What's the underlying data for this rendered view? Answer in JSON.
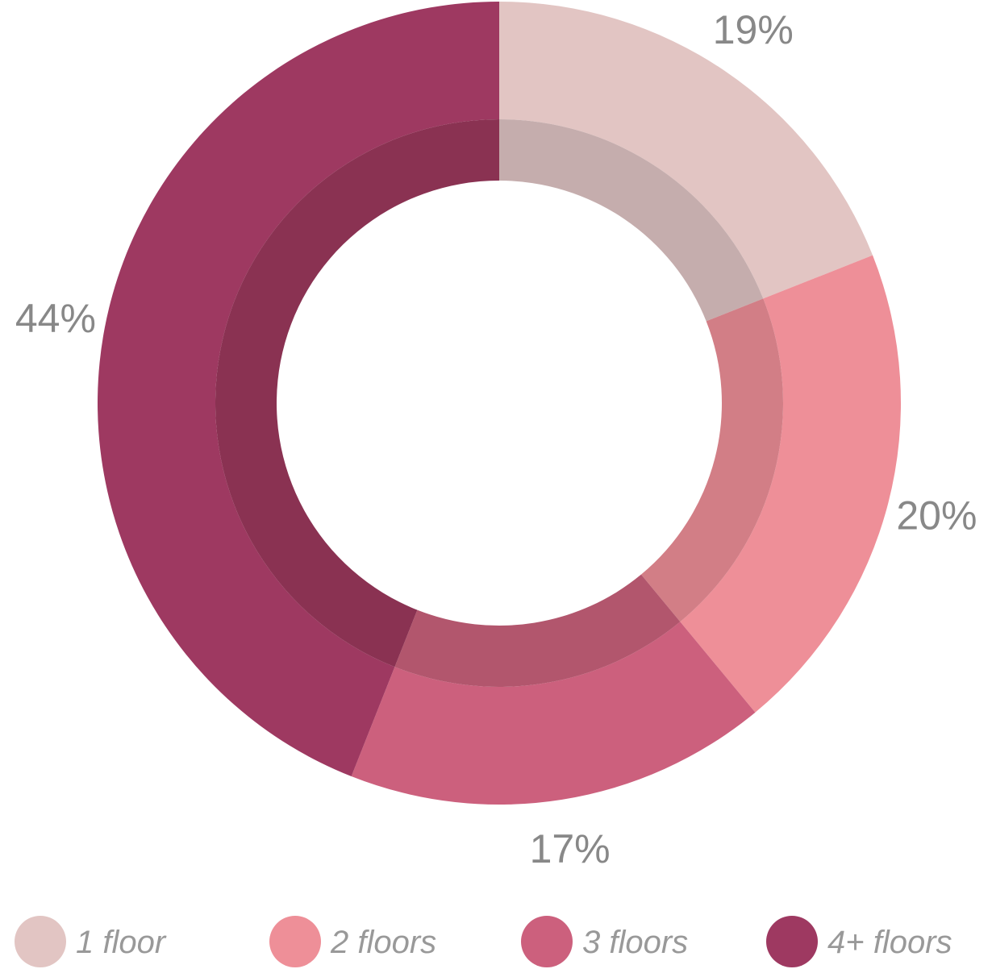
{
  "chart_data": {
    "type": "pie",
    "variant": "donut",
    "categories": [
      "1 floor",
      "2 floors",
      "3 floors",
      "4+ floors"
    ],
    "values": [
      19,
      20,
      17,
      44
    ],
    "value_labels": [
      "19%",
      "20%",
      "17%",
      "44%"
    ],
    "colors": [
      "#e2c5c3",
      "#ee8f98",
      "#cc607d",
      "#9e3961"
    ],
    "inner_band_colors": [
      "#c5adad",
      "#d27e86",
      "#b2566d",
      "#8a3252"
    ],
    "legend": {
      "position": "bottom",
      "items": [
        {
          "label": "1 floor",
          "color": "#e2c5c3"
        },
        {
          "label": "2 floors",
          "color": "#ee8f98"
        },
        {
          "label": "3 floors",
          "color": "#cc607d"
        },
        {
          "label": "4+ floors",
          "color": "#9e3961"
        }
      ]
    },
    "start_angle": "12 o'clock",
    "direction": "clockwise"
  }
}
